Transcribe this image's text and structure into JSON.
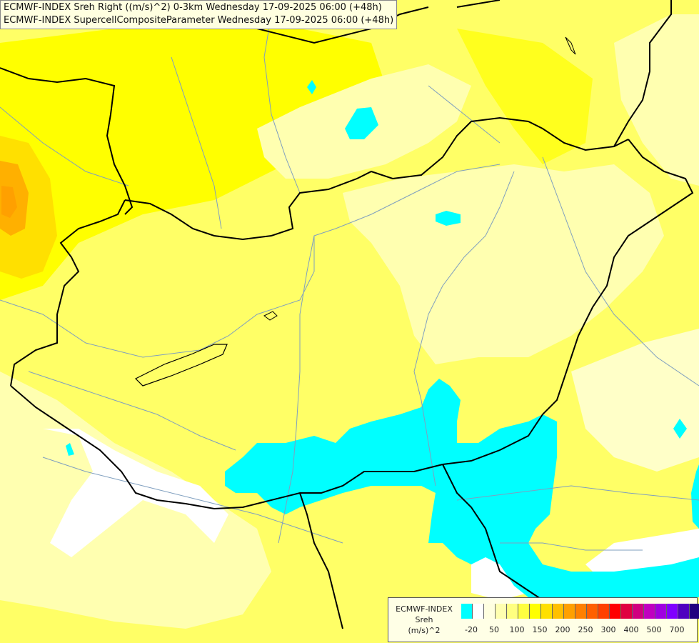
{
  "header": {
    "line1": "ECMWF-INDEX Sreh Right ((m/s)^2) 0-3km Wednesday 17-09-2025 06:00 (+48h)",
    "line2": "ECMWF-INDEX SupercellCompositeParameter Wednesday 17-09-2025 06:00 (+48h)"
  },
  "legend": {
    "title_line1": "ECMWF-INDEX",
    "title_line2": "Sreh",
    "title_line3": "(m/s)^2",
    "swatches": [
      "#00ffff",
      "#ffffff",
      "#ffffe0",
      "#ffffb0",
      "#ffff80",
      "#ffff40",
      "#ffff00",
      "#ffe000",
      "#ffc000",
      "#ffa000",
      "#ff8000",
      "#ff6000",
      "#ff4000",
      "#ff0000",
      "#e00040",
      "#d00080",
      "#c000c0",
      "#a000e0",
      "#8000ff",
      "#5000c0",
      "#200080"
    ],
    "ticks": [
      "-20",
      "50",
      "100",
      "150",
      "200",
      "250",
      "300",
      "400",
      "500",
      "700"
    ]
  },
  "colors": {
    "base_yellow": "#ffff66",
    "cyan": "#00ffff",
    "orange": "#ffa500",
    "border": "#000000",
    "river": "#7f9fbf"
  }
}
